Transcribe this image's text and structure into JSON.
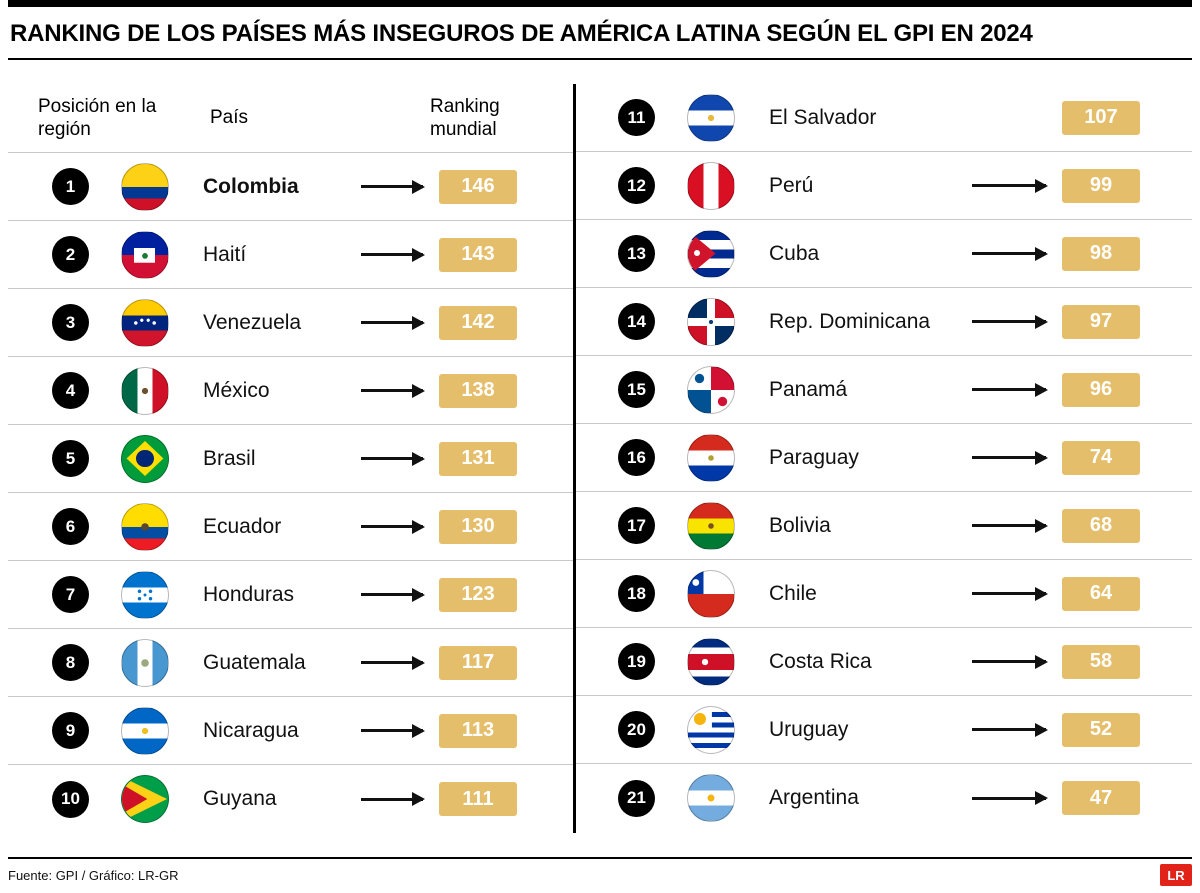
{
  "title": "RANKING DE LOS PAÍSES MÁS INSEGUROS DE AMÉRICA LATINA SEGÚN EL GPI EN 2024",
  "table_headers": {
    "position": "Posición en la región",
    "country": "País",
    "world_ranking": "Ranking mundial"
  },
  "footer": {
    "source": "Fuente: GPI / Gráfico: LR-GR",
    "logo_text": "LR"
  },
  "colors": {
    "badge_gold": "#E5BE6B",
    "logo_red": "#E2231A",
    "position_circle": "#000000"
  },
  "chart_data": {
    "type": "table",
    "title": "RANKING DE LOS PAÍSES MÁS INSEGUROS DE AMÉRICA LATINA SEGÚN EL GPI EN 2024",
    "columns": [
      "Posición en la región",
      "País",
      "Ranking mundial"
    ],
    "layout": {
      "left_column_rows": "positions 1-10",
      "right_column_rows": "positions 11-21",
      "legend": "none",
      "grid": "row separators"
    },
    "rows": [
      {
        "position": 1,
        "country": "Colombia",
        "world_ranking": 146,
        "flag": "colombia",
        "bold": true,
        "arrow": true
      },
      {
        "position": 2,
        "country": "Haití",
        "world_ranking": 143,
        "flag": "haiti",
        "bold": false,
        "arrow": true
      },
      {
        "position": 3,
        "country": "Venezuela",
        "world_ranking": 142,
        "flag": "venezuela",
        "bold": false,
        "arrow": true
      },
      {
        "position": 4,
        "country": "México",
        "world_ranking": 138,
        "flag": "mexico",
        "bold": false,
        "arrow": true
      },
      {
        "position": 5,
        "country": "Brasil",
        "world_ranking": 131,
        "flag": "brasil",
        "bold": false,
        "arrow": true
      },
      {
        "position": 6,
        "country": "Ecuador",
        "world_ranking": 130,
        "flag": "ecuador",
        "bold": false,
        "arrow": true
      },
      {
        "position": 7,
        "country": "Honduras",
        "world_ranking": 123,
        "flag": "honduras",
        "bold": false,
        "arrow": true
      },
      {
        "position": 8,
        "country": "Guatemala",
        "world_ranking": 117,
        "flag": "guatemala",
        "bold": false,
        "arrow": true
      },
      {
        "position": 9,
        "country": "Nicaragua",
        "world_ranking": 113,
        "flag": "nicaragua",
        "bold": false,
        "arrow": true
      },
      {
        "position": 10,
        "country": "Guyana",
        "world_ranking": 111,
        "flag": "guyana",
        "bold": false,
        "arrow": true
      },
      {
        "position": 11,
        "country": "El Salvador",
        "world_ranking": 107,
        "flag": "el-salvador",
        "bold": false,
        "arrow": false
      },
      {
        "position": 12,
        "country": "Perú",
        "world_ranking": 99,
        "flag": "peru",
        "bold": false,
        "arrow": true
      },
      {
        "position": 13,
        "country": "Cuba",
        "world_ranking": 98,
        "flag": "cuba",
        "bold": false,
        "arrow": true
      },
      {
        "position": 14,
        "country": "Rep. Dominicana",
        "world_ranking": 97,
        "flag": "dominicana",
        "bold": false,
        "arrow": true
      },
      {
        "position": 15,
        "country": "Panamá",
        "world_ranking": 96,
        "flag": "panama",
        "bold": false,
        "arrow": true
      },
      {
        "position": 16,
        "country": "Paraguay",
        "world_ranking": 74,
        "flag": "paraguay",
        "bold": false,
        "arrow": true
      },
      {
        "position": 17,
        "country": "Bolivia",
        "world_ranking": 68,
        "flag": "bolivia",
        "bold": false,
        "arrow": true
      },
      {
        "position": 18,
        "country": "Chile",
        "world_ranking": 64,
        "flag": "chile",
        "bold": false,
        "arrow": true
      },
      {
        "position": 19,
        "country": "Costa Rica",
        "world_ranking": 58,
        "flag": "costa-rica",
        "bold": false,
        "arrow": true
      },
      {
        "position": 20,
        "country": "Uruguay",
        "world_ranking": 52,
        "flag": "uruguay",
        "bold": false,
        "arrow": true
      },
      {
        "position": 21,
        "country": "Argentina",
        "world_ranking": 47,
        "flag": "argentina",
        "bold": false,
        "arrow": true
      }
    ]
  }
}
